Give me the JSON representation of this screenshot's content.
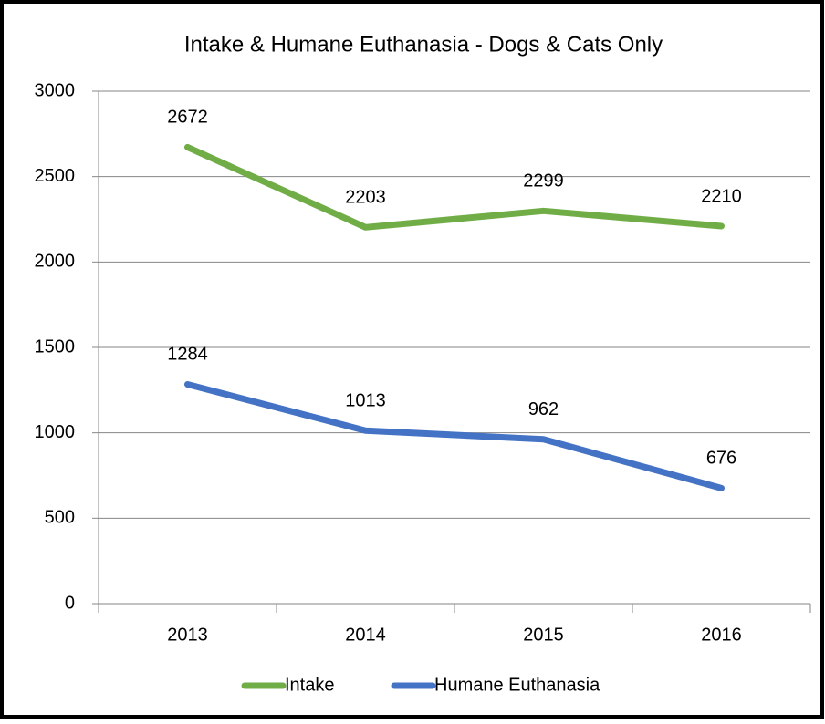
{
  "chart_data": {
    "type": "line",
    "title": "Intake & Humane Euthanasia - Dogs & Cats Only",
    "categories": [
      "2013",
      "2014",
      "2015",
      "2016"
    ],
    "series": [
      {
        "name": "Intake",
        "color": "#70ad47",
        "values": [
          2672,
          2203,
          2299,
          2210
        ]
      },
      {
        "name": "Humane Euthanasia",
        "color": "#4472c4",
        "values": [
          1284,
          1013,
          962,
          676
        ]
      }
    ],
    "ylim": [
      0,
      3000
    ],
    "yticks": [
      0,
      500,
      1000,
      1500,
      2000,
      2500,
      3000
    ],
    "grid": true,
    "legend": "bottom"
  }
}
